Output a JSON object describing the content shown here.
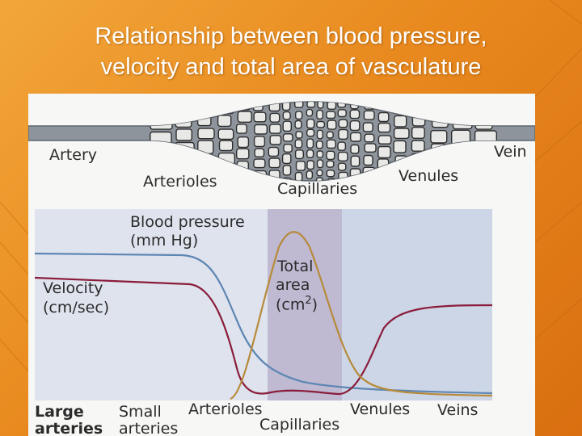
{
  "title": {
    "line1": "Relationship between blood pressure,",
    "line2": "velocity and total area of vasculature"
  },
  "vessel_labels": {
    "artery": "Artery",
    "arterioles": "Arterioles",
    "capillaries": "Capillaries",
    "venules": "Venules",
    "vein": "Vein"
  },
  "graph_labels": {
    "blood_pressure": "Blood pressure",
    "blood_pressure_unit": "(mm Hg)",
    "velocity": "Velocity",
    "velocity_unit": "(cm/sec)",
    "total": "Total",
    "area": "area",
    "area_unit": "(cm2)"
  },
  "axis_labels": {
    "large": "Large",
    "large_sub": "arteries",
    "small": "Small",
    "small_sub": "arteries",
    "arterioles": "Arterioles",
    "capillaries": "Capillaries",
    "venules": "Venules",
    "veins": "Veins"
  },
  "colors": {
    "blood_pressure_curve": "#5d86b3",
    "velocity_curve": "#8a1c3a",
    "total_area_curve": "#b78a3a",
    "capillary_band": "#c6c3d6",
    "venous_band": "#d8dde8"
  }
}
